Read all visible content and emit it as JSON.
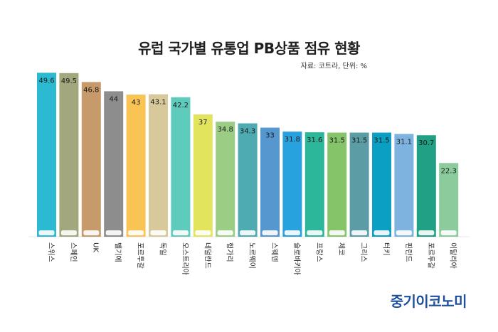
{
  "chart_data": {
    "type": "bar",
    "title": "유럽 국가별 유통업 PB상품 점유 현황",
    "source": "자료: 코트라, 단위: %",
    "categories": [
      "스위스",
      "스페인",
      "UK",
      "벨기에",
      "포르투갈",
      "독일",
      "오스트리아",
      "네덜란드",
      "헝가리",
      "노르웨이",
      "스웨덴",
      "슬로바키아",
      "프랑스",
      "체코",
      "그리스",
      "터키",
      "핀란드",
      "포르투갈",
      "이탈리아"
    ],
    "values": [
      49.6,
      49.5,
      46.8,
      44,
      43,
      43.1,
      42.2,
      37,
      34.8,
      34.3,
      33,
      31.8,
      31.6,
      31.5,
      31.5,
      31.5,
      31.1,
      30.7,
      22.3
    ],
    "value_labels": [
      "49.6",
      "49.5",
      "46.8",
      "44",
      "43",
      "43.1",
      "42.2",
      "37",
      "34.8",
      "34.3",
      "33",
      "31.8",
      "31.6",
      "31.5",
      "31.5",
      "31.5",
      "31.1",
      "30.7",
      "22.3"
    ],
    "colors": [
      "#2bbad2",
      "#a3a77d",
      "#c69a6a",
      "#8d8d8d",
      "#f9c453",
      "#d7c99b",
      "#5fcbbd",
      "#e3e45d",
      "#9ccd84",
      "#4eabb1",
      "#5697cf",
      "#27a2df",
      "#2cb79a",
      "#86c46a",
      "#5c9da5",
      "#0b9fc4",
      "#7fb3df",
      "#22a086",
      "#8ccb9c"
    ],
    "ylim": [
      0,
      55
    ],
    "grid": false,
    "legend": "none"
  },
  "brand": "중기이코노미"
}
